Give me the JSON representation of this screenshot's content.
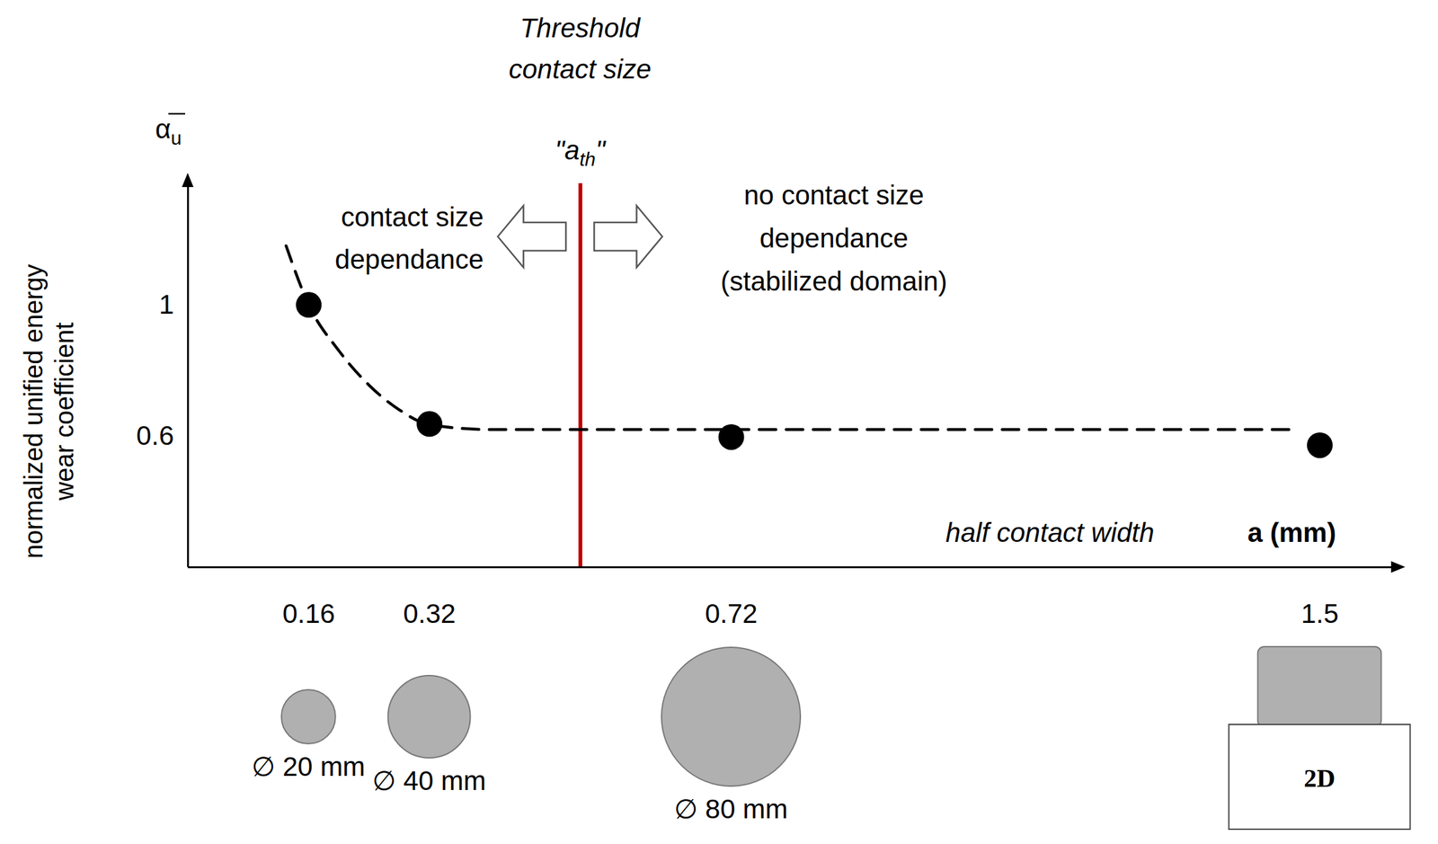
{
  "chart_data": {
    "type": "scatter",
    "xlabel": "a (mm)",
    "ylabel": [
      "normalized unified energy",
      "wear coefficient"
    ],
    "y_symbol": {
      "text": "α",
      "subscript": "u"
    },
    "xlim": [
      0,
      1.6
    ],
    "xticks": [
      0.16,
      0.32,
      0.72,
      1.5
    ],
    "ylim": [
      0.2,
      1.37
    ],
    "yticks": [
      0.6,
      1
    ],
    "grid": false,
    "points": {
      "x": [
        0.16,
        0.32,
        0.72,
        1.5
      ],
      "y": [
        1.0,
        0.637,
        0.597,
        0.572
      ],
      "color": "#000000",
      "marker": "circle"
    },
    "fit_curve": {
      "x": [
        0.13,
        0.16,
        0.2,
        0.24,
        0.28,
        0.32,
        0.4,
        0.72,
        1.47
      ],
      "y": [
        1.18,
        1.0,
        0.86,
        0.755,
        0.68,
        0.635,
        0.62,
        0.62,
        0.62
      ],
      "color": "#000000",
      "line_style": "dashed"
    },
    "threshold": {
      "x": 0.52,
      "color": "#c00000",
      "title": [
        "Threshold",
        "contact size"
      ],
      "label": [
        "\"a",
        "th",
        "\""
      ]
    },
    "annotations": {
      "left": [
        "contact size",
        "dependance"
      ],
      "right": [
        "no contact size",
        "dependance",
        "(stabilized domain)"
      ],
      "x_axis_note": "half contact width"
    },
    "specimens": [
      {
        "x": 0.16,
        "diameter": 20,
        "label": "∅ 20 mm",
        "marker": "circle"
      },
      {
        "x": 0.32,
        "diameter": 40,
        "label": "∅ 40 mm",
        "marker": "circle"
      },
      {
        "x": 0.72,
        "diameter": 80,
        "label": "∅ 80 mm",
        "marker": "circle"
      },
      {
        "x": 1.5,
        "label": "2D",
        "marker": "square"
      }
    ]
  }
}
